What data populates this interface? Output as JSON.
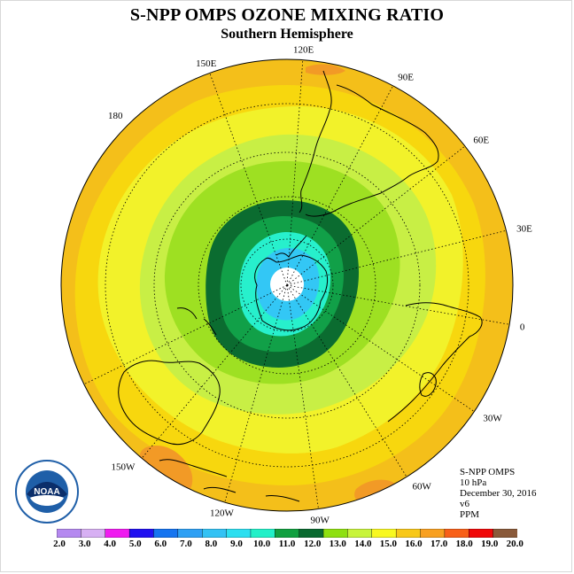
{
  "title": "S-NPP OMPS OZONE MIXING RATIO",
  "subtitle": "Southern Hemisphere",
  "longitude_labels": [
    {
      "text": "90W",
      "lon": -90
    },
    {
      "text": "60W",
      "lon": -60
    },
    {
      "text": "120W",
      "lon": -120
    },
    {
      "text": "30W",
      "lon": -30
    },
    {
      "text": "150W",
      "lon": -150
    },
    {
      "text": "0",
      "lon": 0
    },
    {
      "text": "180",
      "lon": 180
    },
    {
      "text": "30E",
      "lon": 30
    },
    {
      "text": "150E",
      "lon": 150
    },
    {
      "text": "60E",
      "lon": 60
    },
    {
      "text": "120E",
      "lon": 120
    },
    {
      "text": "90E",
      "lon": 90
    }
  ],
  "info": {
    "instrument": "S-NPP OMPS",
    "level": "10 hPa",
    "date": "December 30, 2016",
    "version": "v6",
    "units": "PPM"
  },
  "logo": {
    "text": "NOAA",
    "colors": {
      "blue": "#1f5fa8",
      "white": "#ffffff",
      "dark": "#0b2e6a"
    }
  },
  "colorbar": {
    "labels": [
      "2.0",
      "3.0",
      "4.0",
      "5.0",
      "6.0",
      "7.0",
      "8.0",
      "9.0",
      "10.0",
      "11.0",
      "12.0",
      "13.0",
      "14.0",
      "15.0",
      "16.0",
      "17.0",
      "18.0",
      "19.0",
      "20.0"
    ],
    "colors": [
      "#b589f0",
      "#d7b0f3",
      "#f01bf0",
      "#2010f0",
      "#1574f0",
      "#2ea0f4",
      "#33c2f4",
      "#2cdff0",
      "#22f0c8",
      "#11a040",
      "#0a6a30",
      "#8ee010",
      "#c8f43a",
      "#f8f820",
      "#f8c818",
      "#f8a020",
      "#f86018",
      "#f00808",
      "#8a5a3a"
    ]
  },
  "map_colors": {
    "level_16_17": "#f4bf1a",
    "level_15_16": "#f7d70e",
    "level_14_15": "#f2f22a",
    "level_13_14": "#c8ef45",
    "level_12_13": "#9ee022",
    "level_11_12": "#0b6c30",
    "level_10_11": "#11a048",
    "level_9_10": "#27f0cc",
    "level_8_9": "#33c7f5",
    "level_17_18": "#f29a26",
    "pole": "#ffffff"
  }
}
